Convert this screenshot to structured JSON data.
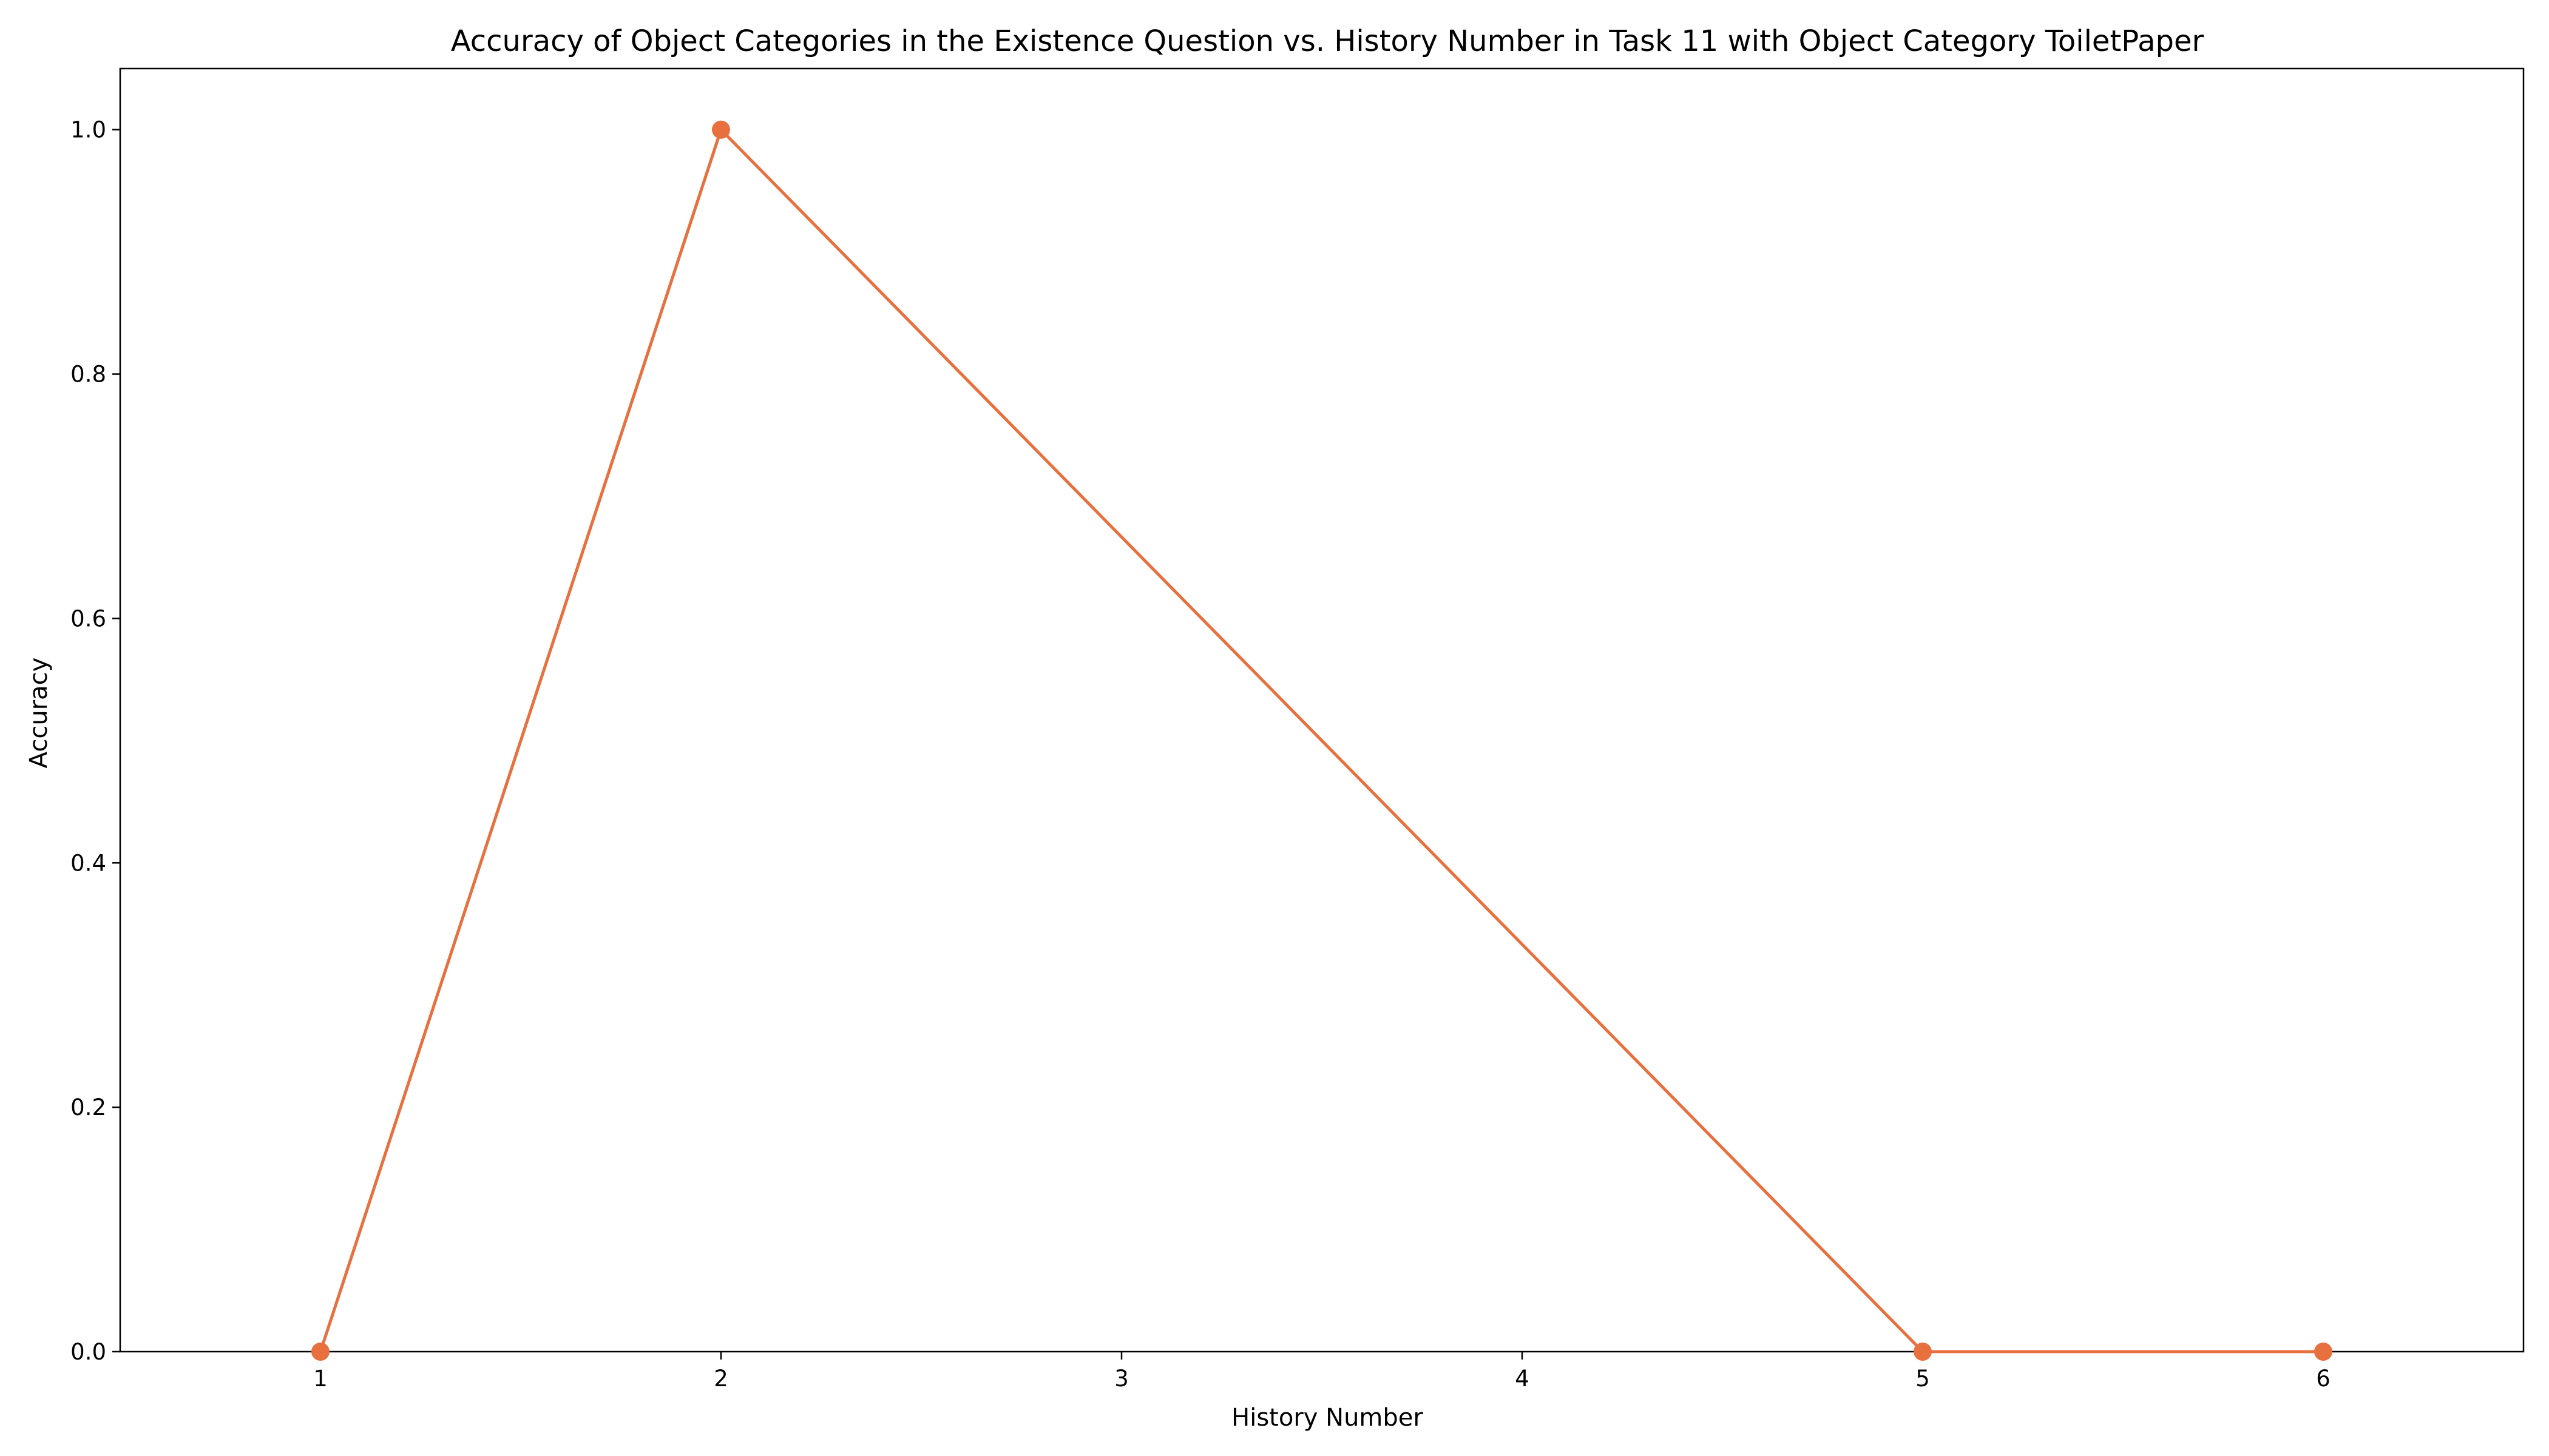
{
  "chart_data": {
    "type": "line",
    "title": "Accuracy of Object Categories in the Existence Question vs. History Number in Task 11 with Object Category ToiletPaper",
    "xlabel": "History Number",
    "ylabel": "Accuracy",
    "x": [
      1,
      2,
      5,
      6
    ],
    "series": [
      {
        "values": [
          0.0,
          1.0,
          0.0,
          0.0
        ],
        "color": "#E8703E",
        "marker": "circle"
      }
    ],
    "xlim": [
      0.5,
      6.5
    ],
    "ylim": [
      0.0,
      1.05
    ],
    "xticks": [
      1,
      2,
      3,
      4,
      5,
      6
    ],
    "xtick_labels": [
      "1",
      "2",
      "3",
      "4",
      "5",
      "6"
    ],
    "yticks": [
      0.0,
      0.2,
      0.4,
      0.6,
      0.8,
      1.0
    ],
    "ytick_labels": [
      "0.0",
      "0.2",
      "0.4",
      "0.6",
      "0.8",
      "1.0"
    ],
    "grid": false,
    "legend": "none"
  }
}
